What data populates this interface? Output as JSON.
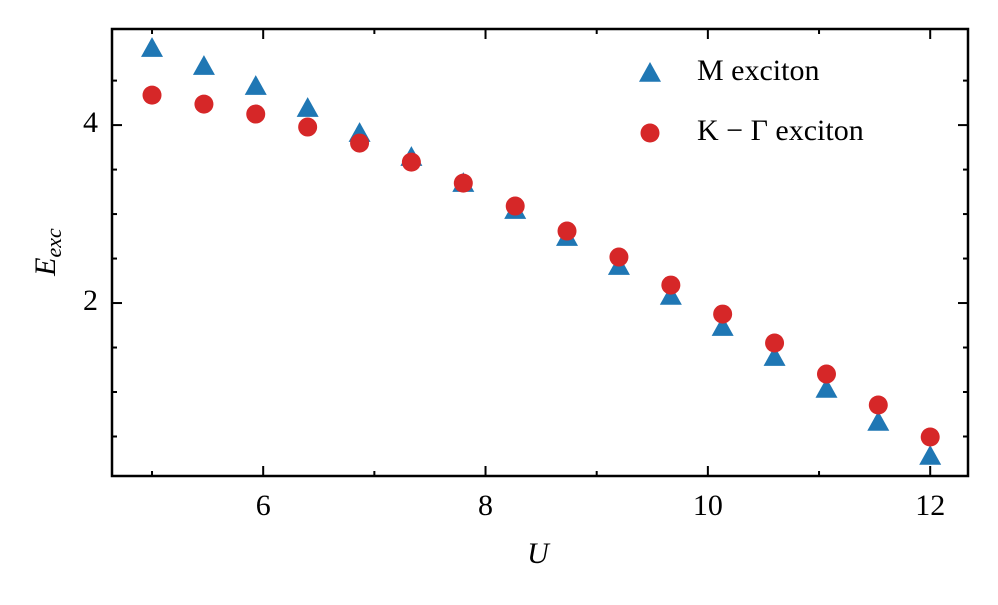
{
  "chart_data": {
    "type": "scatter",
    "xlabel": "U",
    "ylabel": [
      "E",
      "exc"
    ],
    "xlim": [
      4.64,
      12.34
    ],
    "ylim": [
      0.056,
      5.08
    ],
    "xticks": [
      6,
      8,
      10,
      12
    ],
    "yticks": [
      2,
      4
    ],
    "xticks_minor": [
      5,
      7,
      9,
      11
    ],
    "yticks_minor": [
      0.5,
      1,
      1.5,
      2.5,
      3,
      3.5,
      4.5
    ],
    "legend": "upper right",
    "x": [
      5,
      5.467,
      5.933,
      6.4,
      6.867,
      7.333,
      7.8,
      8.267,
      8.733,
      9.2,
      9.667,
      10.133,
      10.6,
      11.067,
      11.533,
      12
    ],
    "series": [
      {
        "name": "M exciton",
        "color": "#1f77b4",
        "marker": "triangle",
        "values": [
          4.865,
          4.663,
          4.438,
          4.191,
          3.91,
          3.64,
          3.348,
          3.045,
          2.742,
          2.416,
          2.079,
          1.73,
          1.393,
          1.034,
          0.663,
          0.281
        ]
      },
      {
        "name": "K − Γ exciton",
        "color": "#d62728",
        "marker": "circle",
        "values": [
          4.337,
          4.236,
          4.124,
          3.978,
          3.798,
          3.584,
          3.348,
          3.09,
          2.809,
          2.517,
          2.202,
          1.876,
          1.551,
          1.202,
          0.854,
          0.494
        ]
      }
    ]
  }
}
